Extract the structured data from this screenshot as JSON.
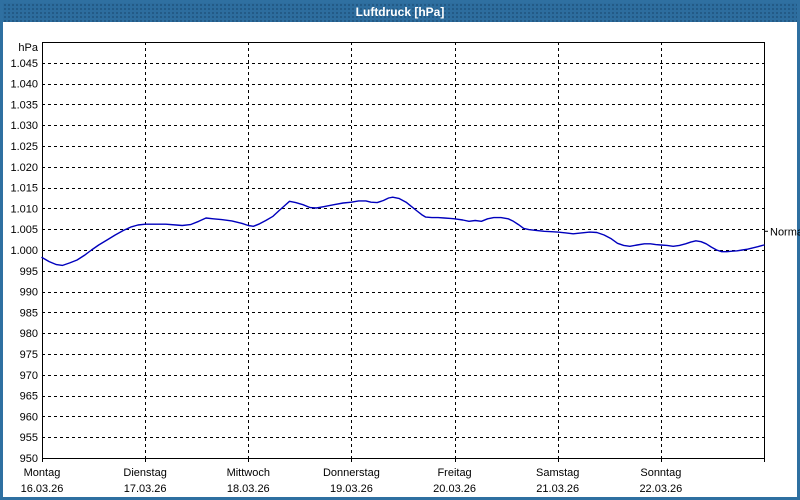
{
  "window": {
    "title": "Luftdruck [hPa]"
  },
  "colors": {
    "titlebar": "#2d6d9e",
    "window_border": "#2f70a1",
    "plot_border": "#000000",
    "grid": "#000000",
    "line": "#0000bd",
    "text": "#000000",
    "background": "#ffffff"
  },
  "chart_data": {
    "type": "line",
    "title": "Luftdruck [hPa]",
    "unit_label": "hPa",
    "grid": "dashed",
    "legend_position": "none",
    "ylim": [
      950,
      1050
    ],
    "ytick_step": 5,
    "yticks": [
      {
        "value": 1045,
        "label": "1.045"
      },
      {
        "value": 1040,
        "label": "1.040"
      },
      {
        "value": 1035,
        "label": "1.035"
      },
      {
        "value": 1030,
        "label": "1.030"
      },
      {
        "value": 1025,
        "label": "1.025"
      },
      {
        "value": 1020,
        "label": "1.020"
      },
      {
        "value": 1015,
        "label": "1.015"
      },
      {
        "value": 1010,
        "label": "1.010"
      },
      {
        "value": 1005,
        "label": "1.005"
      },
      {
        "value": 1000,
        "label": "1.000"
      },
      {
        "value": 995,
        "label": "995"
      },
      {
        "value": 990,
        "label": "990"
      },
      {
        "value": 985,
        "label": "985"
      },
      {
        "value": 980,
        "label": "980"
      },
      {
        "value": 975,
        "label": "975"
      },
      {
        "value": 970,
        "label": "970"
      },
      {
        "value": 965,
        "label": "965"
      },
      {
        "value": 960,
        "label": "960"
      },
      {
        "value": 955,
        "label": "955"
      },
      {
        "value": 950,
        "label": "950"
      }
    ],
    "x_days": [
      {
        "name": "Montag",
        "date": "16.03.26"
      },
      {
        "name": "Dienstag",
        "date": "17.03.26"
      },
      {
        "name": "Mittwoch",
        "date": "18.03.26"
      },
      {
        "name": "Donnerstag",
        "date": "19.03.26"
      },
      {
        "name": "Freitag",
        "date": "20.03.26"
      },
      {
        "name": "Samstag",
        "date": "21.03.26"
      },
      {
        "name": "Sonntag",
        "date": "22.03.26"
      }
    ],
    "normal_marker": {
      "label": "Normal",
      "value": 1004.5
    },
    "series": [
      {
        "name": "Luftdruck",
        "color": "#0000bd",
        "points_format": "[day_fraction_from_monday_0_to_7, hPa]",
        "points": [
          [
            0.0,
            998.2
          ],
          [
            0.07,
            997.2
          ],
          [
            0.14,
            996.5
          ],
          [
            0.2,
            996.3
          ],
          [
            0.27,
            996.9
          ],
          [
            0.34,
            997.6
          ],
          [
            0.41,
            998.7
          ],
          [
            0.48,
            1000.0
          ],
          [
            0.55,
            1001.2
          ],
          [
            0.63,
            1002.4
          ],
          [
            0.71,
            1003.6
          ],
          [
            0.79,
            1004.7
          ],
          [
            0.86,
            1005.5
          ],
          [
            0.93,
            1006.0
          ],
          [
            1.0,
            1006.2
          ],
          [
            1.1,
            1006.2
          ],
          [
            1.2,
            1006.2
          ],
          [
            1.3,
            1006.0
          ],
          [
            1.36,
            1005.9
          ],
          [
            1.44,
            1006.1
          ],
          [
            1.52,
            1006.9
          ],
          [
            1.59,
            1007.7
          ],
          [
            1.66,
            1007.5
          ],
          [
            1.74,
            1007.3
          ],
          [
            1.84,
            1007.0
          ],
          [
            1.94,
            1006.4
          ],
          [
            2.0,
            1005.9
          ],
          [
            2.05,
            1005.7
          ],
          [
            2.11,
            1006.3
          ],
          [
            2.17,
            1007.1
          ],
          [
            2.24,
            1008.1
          ],
          [
            2.3,
            1009.5
          ],
          [
            2.35,
            1010.6
          ],
          [
            2.4,
            1011.7
          ],
          [
            2.46,
            1011.4
          ],
          [
            2.53,
            1010.9
          ],
          [
            2.6,
            1010.2
          ],
          [
            2.66,
            1010.1
          ],
          [
            2.73,
            1010.4
          ],
          [
            2.83,
            1010.9
          ],
          [
            2.92,
            1011.3
          ],
          [
            3.0,
            1011.5
          ],
          [
            3.07,
            1011.8
          ],
          [
            3.14,
            1011.8
          ],
          [
            3.19,
            1011.5
          ],
          [
            3.25,
            1011.4
          ],
          [
            3.31,
            1011.9
          ],
          [
            3.36,
            1012.5
          ],
          [
            3.4,
            1012.7
          ],
          [
            3.46,
            1012.4
          ],
          [
            3.53,
            1011.5
          ],
          [
            3.59,
            1010.3
          ],
          [
            3.63,
            1009.5
          ],
          [
            3.68,
            1008.5
          ],
          [
            3.72,
            1007.9
          ],
          [
            3.78,
            1007.8
          ],
          [
            3.84,
            1007.8
          ],
          [
            3.9,
            1007.7
          ],
          [
            3.96,
            1007.6
          ],
          [
            4.0,
            1007.5
          ],
          [
            4.08,
            1007.2
          ],
          [
            4.14,
            1006.9
          ],
          [
            4.2,
            1007.1
          ],
          [
            4.26,
            1006.9
          ],
          [
            4.32,
            1007.5
          ],
          [
            4.38,
            1007.8
          ],
          [
            4.45,
            1007.8
          ],
          [
            4.52,
            1007.5
          ],
          [
            4.57,
            1006.9
          ],
          [
            4.62,
            1006.1
          ],
          [
            4.67,
            1005.2
          ],
          [
            4.72,
            1004.9
          ],
          [
            4.79,
            1004.7
          ],
          [
            4.87,
            1004.5
          ],
          [
            4.94,
            1004.4
          ],
          [
            5.0,
            1004.3
          ],
          [
            5.08,
            1004.1
          ],
          [
            5.15,
            1003.9
          ],
          [
            5.23,
            1004.1
          ],
          [
            5.31,
            1004.3
          ],
          [
            5.38,
            1004.2
          ],
          [
            5.45,
            1003.6
          ],
          [
            5.52,
            1002.7
          ],
          [
            5.58,
            1001.6
          ],
          [
            5.64,
            1001.1
          ],
          [
            5.7,
            1000.9
          ],
          [
            5.77,
            1001.2
          ],
          [
            5.84,
            1001.5
          ],
          [
            5.9,
            1001.5
          ],
          [
            5.95,
            1001.3
          ],
          [
            6.0,
            1001.2
          ],
          [
            6.06,
            1001.1
          ],
          [
            6.12,
            1000.9
          ],
          [
            6.18,
            1001.1
          ],
          [
            6.24,
            1001.5
          ],
          [
            6.29,
            1001.9
          ],
          [
            6.34,
            1002.2
          ],
          [
            6.39,
            1002.0
          ],
          [
            6.44,
            1001.5
          ],
          [
            6.49,
            1000.7
          ],
          [
            6.54,
            1000.0
          ],
          [
            6.59,
            999.6
          ],
          [
            6.64,
            999.6
          ],
          [
            6.69,
            999.7
          ],
          [
            6.74,
            999.8
          ],
          [
            6.79,
            1000.0
          ],
          [
            6.84,
            1000.2
          ],
          [
            6.89,
            1000.5
          ],
          [
            6.94,
            1000.8
          ],
          [
            7.0,
            1001.2
          ]
        ]
      }
    ]
  }
}
